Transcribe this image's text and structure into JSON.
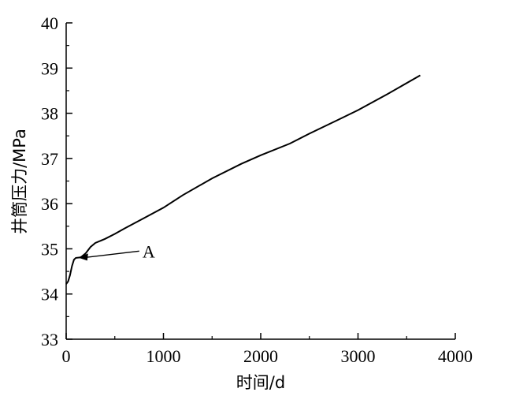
{
  "chart_data": {
    "type": "line",
    "title": "",
    "xlabel": "时间/d",
    "ylabel": "井筒压力/MPa",
    "xlim": [
      0,
      4000
    ],
    "ylim": [
      33,
      40
    ],
    "x_ticks": [
      "0",
      "1000",
      "2000",
      "3000",
      "4000"
    ],
    "y_ticks": [
      "33",
      "34",
      "35",
      "36",
      "37",
      "38",
      "39",
      "40"
    ],
    "grid": false,
    "legend": "none",
    "series": [
      {
        "color": "#000000",
        "points": [
          [
            0,
            34.22
          ],
          [
            20,
            34.28
          ],
          [
            40,
            34.42
          ],
          [
            60,
            34.62
          ],
          [
            80,
            34.76
          ],
          [
            100,
            34.8
          ],
          [
            150,
            34.81
          ],
          [
            200,
            34.9
          ],
          [
            250,
            35.04
          ],
          [
            300,
            35.13
          ],
          [
            400,
            35.22
          ],
          [
            500,
            35.33
          ],
          [
            600,
            35.45
          ],
          [
            800,
            35.68
          ],
          [
            1000,
            35.91
          ],
          [
            1200,
            36.19
          ],
          [
            1500,
            36.56
          ],
          [
            1800,
            36.88
          ],
          [
            2000,
            37.07
          ],
          [
            2300,
            37.33
          ],
          [
            2500,
            37.55
          ],
          [
            2800,
            37.86
          ],
          [
            3000,
            38.07
          ],
          [
            3300,
            38.42
          ],
          [
            3640,
            38.84
          ]
        ]
      }
    ],
    "annotations": [
      {
        "text": "A",
        "target": [
          120,
          34.81
        ]
      }
    ]
  }
}
